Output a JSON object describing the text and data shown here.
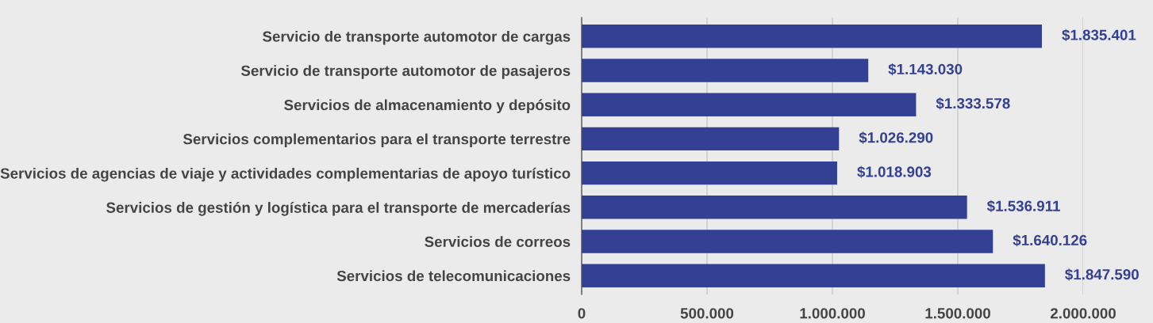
{
  "chart_data": {
    "type": "bar",
    "orientation": "horizontal",
    "categories": [
      "Servicio de transporte automotor de cargas",
      "Servicio de transporte automotor de pasajeros",
      "Servicios de almacenamiento y depósito",
      "Servicios complementarios para el transporte terrestre",
      "Servicios de agencias de viaje y actividades complementarias de apoyo turístico",
      "Servicios de gestión y logística para el transporte de mercaderías",
      "Servicios de correos",
      "Servicios de telecomunicaciones"
    ],
    "values": [
      1835401,
      1143030,
      1333578,
      1026290,
      1018903,
      1536911,
      1640126,
      1847590
    ],
    "value_labels": [
      "$1.835.401",
      "$1.143.030",
      "$1.333.578",
      "$1.026.290",
      "$1.018.903",
      "$1.536.911",
      "$1.640.126",
      "$1.847.590"
    ],
    "color": "#334094",
    "xlim": [
      0,
      2000000
    ],
    "xticks": [
      0,
      {
        "value": 500000,
        "label": "500.000"
      },
      {
        "value": 1000000,
        "label": "1.000.000"
      },
      {
        "value": 1500000,
        "label": "1.500.000"
      },
      {
        "value": 2000000,
        "label": "2.000.000"
      }
    ],
    "grid": "x",
    "legend": false
  }
}
